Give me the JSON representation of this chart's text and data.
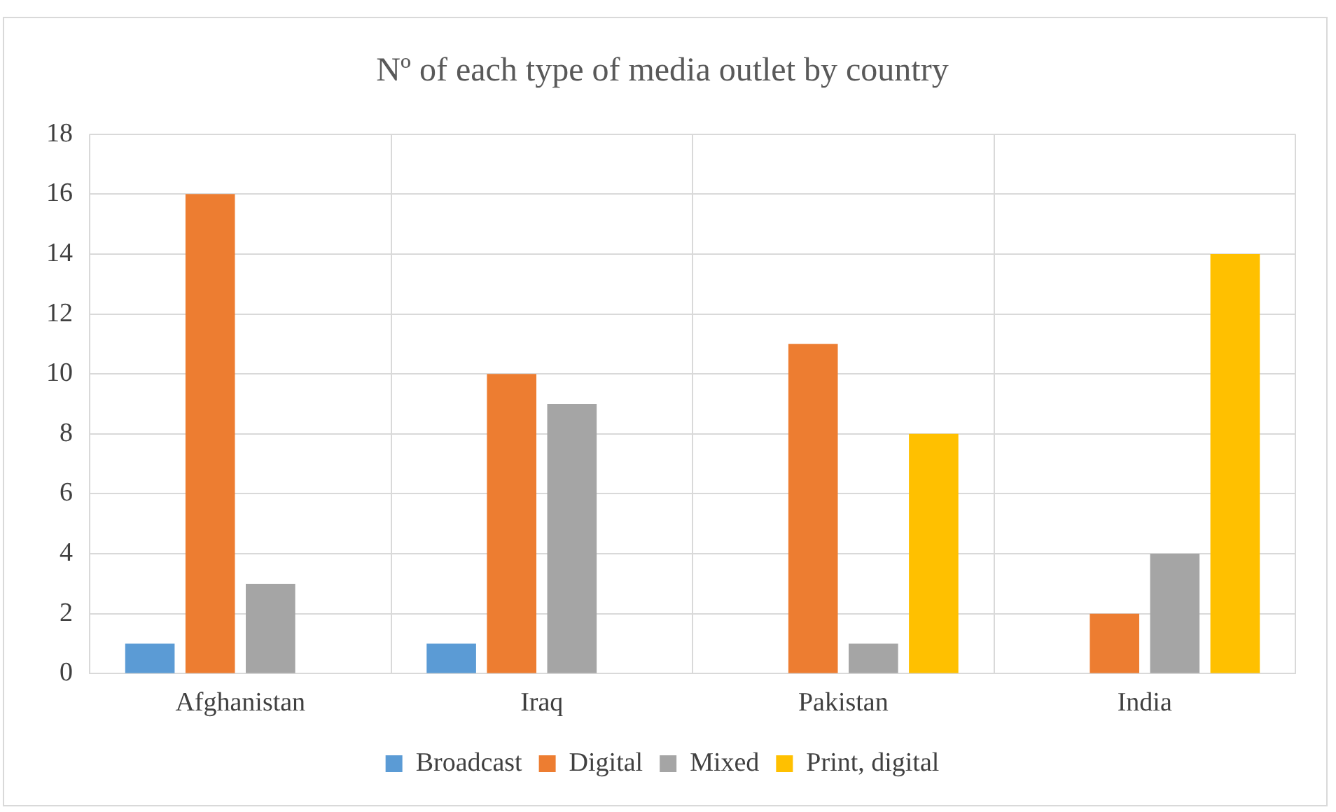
{
  "chart_data": {
    "type": "bar",
    "title": "Nº of each type of media outlet by country",
    "categories": [
      "Afghanistan",
      "Iraq",
      "Pakistan",
      "India"
    ],
    "series": [
      {
        "name": "Broadcast",
        "color": "#5b9bd5",
        "values": [
          1,
          1,
          0,
          0
        ]
      },
      {
        "name": "Digital",
        "color": "#ed7d31",
        "values": [
          16,
          10,
          11,
          2
        ]
      },
      {
        "name": "Mixed",
        "color": "#a5a5a5",
        "values": [
          3,
          9,
          1,
          4
        ]
      },
      {
        "name": "Print, digital",
        "color": "#ffc000",
        "values": [
          0,
          0,
          8,
          14
        ]
      }
    ],
    "ylim": [
      0,
      18
    ],
    "yticks": [
      0,
      2,
      4,
      6,
      8,
      10,
      12,
      14,
      16,
      18
    ],
    "grid": true,
    "legend": "bottom"
  }
}
